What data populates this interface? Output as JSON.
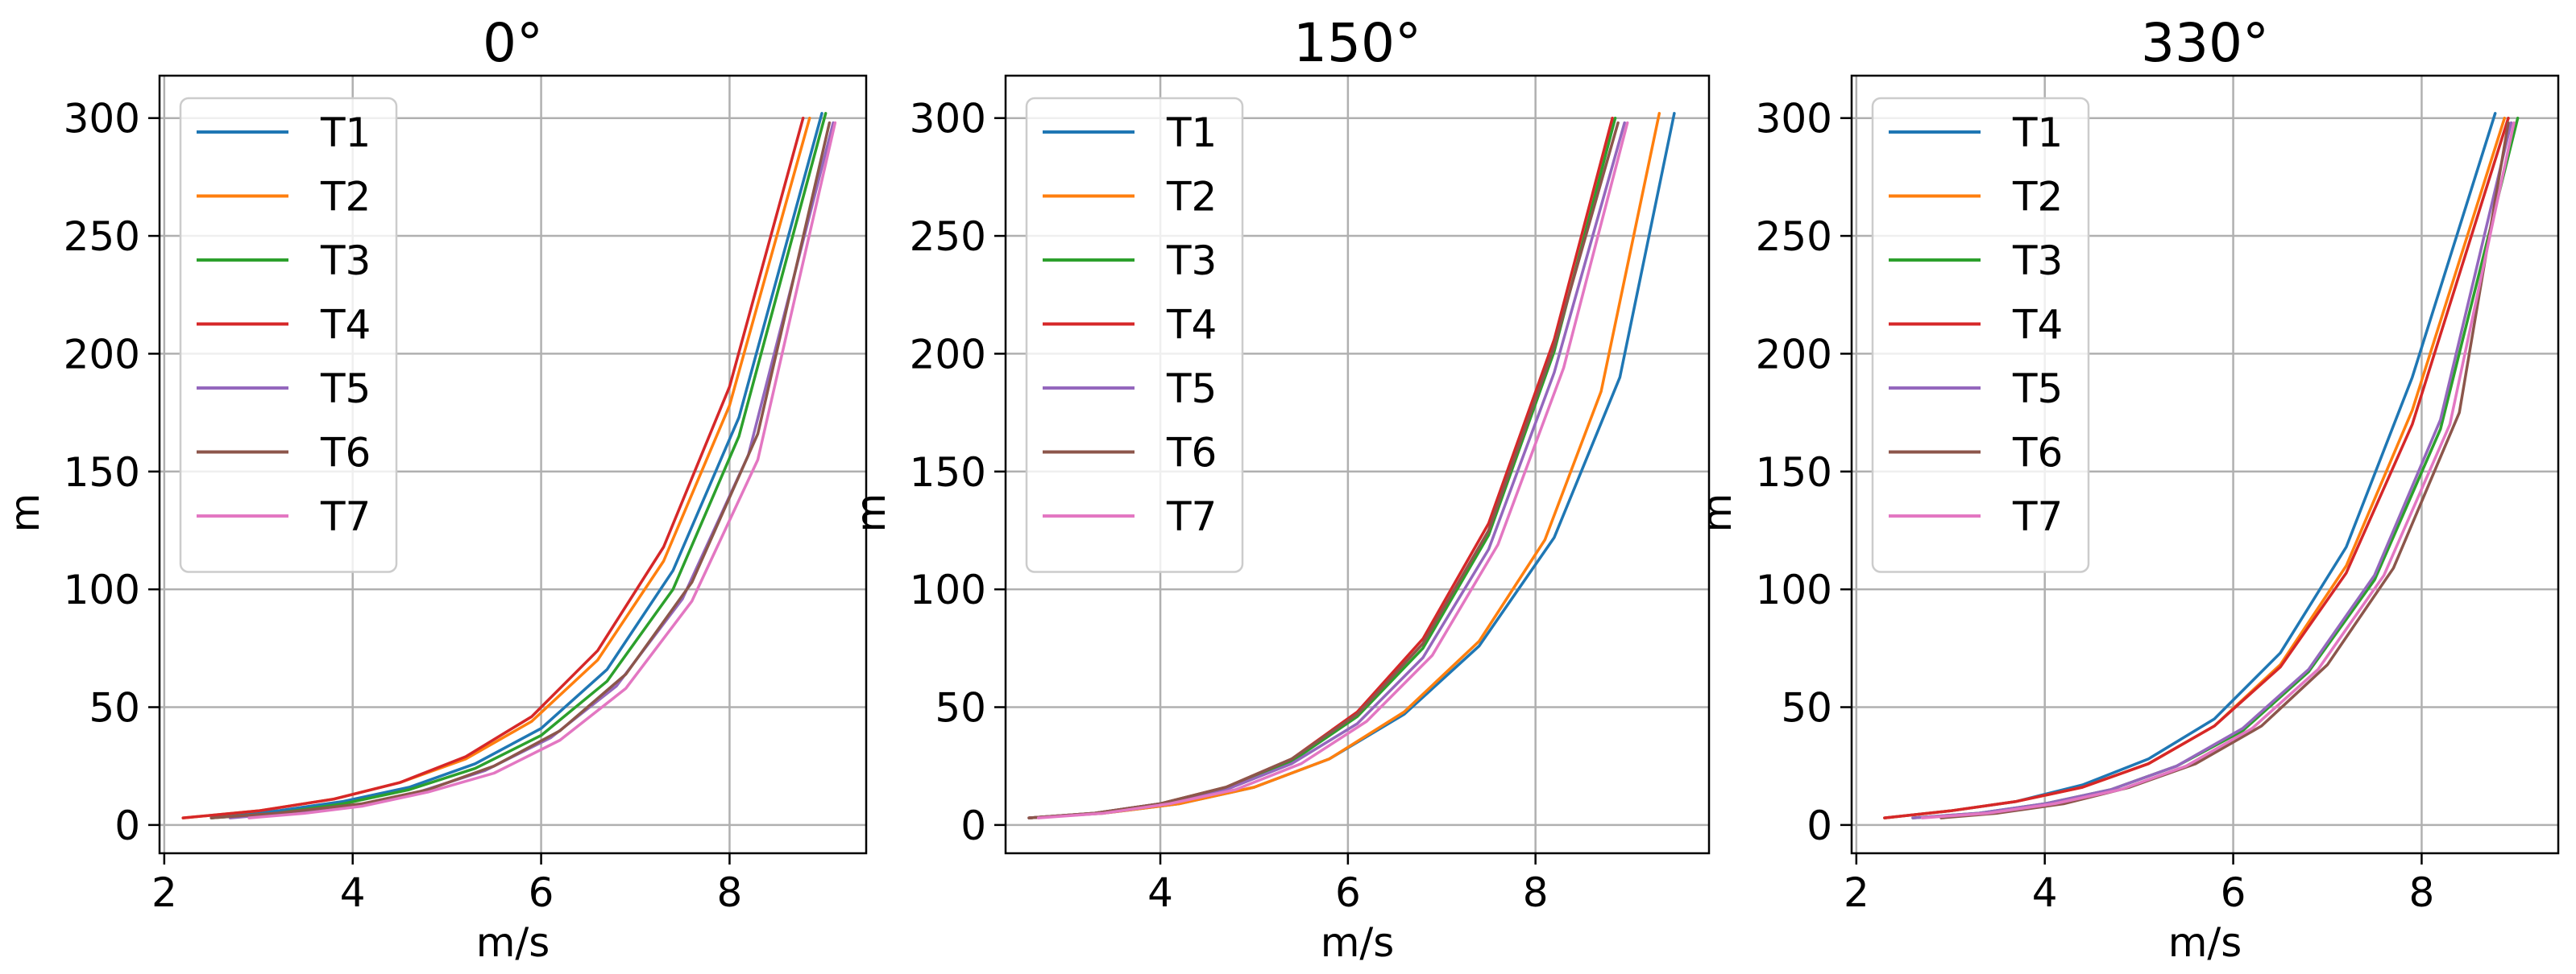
{
  "chart_data": [
    {
      "type": "line",
      "title": "0$^\\circ$",
      "title_display": "0°",
      "xlabel": "m/s",
      "ylabel": "m",
      "xlim": [
        1.95,
        9.45
      ],
      "ylim": [
        -12,
        318
      ],
      "xticks": [
        2,
        4,
        6,
        8
      ],
      "yticks": [
        0,
        50,
        100,
        150,
        200,
        250,
        300
      ],
      "grid": true,
      "legend": "top-left",
      "series": [
        {
          "name": "T1",
          "color": "#1f77b4",
          "ws": [
            2.5,
            3.2,
            3.9,
            4.6,
            5.3,
            6.0,
            6.7,
            7.4,
            8.1,
            8.98
          ],
          "h": [
            3,
            6,
            10,
            16,
            26,
            41,
            66,
            108,
            173,
            302
          ]
        },
        {
          "name": "T2",
          "color": "#ff7f0e",
          "ws": [
            2.2,
            3.0,
            3.8,
            4.5,
            5.2,
            5.9,
            6.6,
            7.3,
            8.0,
            8.85
          ],
          "h": [
            3,
            6,
            11,
            18,
            28,
            44,
            70,
            112,
            178,
            300
          ]
        },
        {
          "name": "T3",
          "color": "#2ca02c",
          "ws": [
            2.5,
            3.2,
            3.9,
            4.6,
            5.3,
            6.0,
            6.7,
            7.4,
            8.1,
            9.02
          ],
          "h": [
            3,
            5,
            9,
            15,
            24,
            38,
            61,
            100,
            165,
            302
          ]
        },
        {
          "name": "T4",
          "color": "#d62728",
          "ws": [
            2.2,
            3.0,
            3.8,
            4.5,
            5.2,
            5.9,
            6.6,
            7.3,
            8.0,
            8.78
          ],
          "h": [
            3,
            6,
            11,
            18,
            29,
            46,
            74,
            118,
            186,
            300
          ]
        },
        {
          "name": "T5",
          "color": "#9467bd",
          "ws": [
            2.7,
            3.3,
            4.0,
            4.7,
            5.4,
            6.1,
            6.8,
            7.5,
            8.2,
            9.1
          ],
          "h": [
            3,
            5,
            8,
            14,
            23,
            37,
            59,
            96,
            157,
            298
          ]
        },
        {
          "name": "T6",
          "color": "#8c564b",
          "ws": [
            2.5,
            3.2,
            4.1,
            4.8,
            5.5,
            6.2,
            6.9,
            7.6,
            8.3,
            9.06
          ],
          "h": [
            3,
            5,
            9,
            15,
            25,
            40,
            64,
            103,
            166,
            298
          ]
        },
        {
          "name": "T7",
          "color": "#e377c2",
          "ws": [
            2.9,
            3.5,
            4.1,
            4.8,
            5.5,
            6.2,
            6.9,
            7.6,
            8.3,
            9.12
          ],
          "h": [
            3,
            5,
            8,
            14,
            22,
            36,
            58,
            95,
            155,
            298
          ]
        }
      ]
    },
    {
      "type": "line",
      "title": "150$^\\circ$",
      "title_display": "150°",
      "xlabel": "m/s",
      "ylabel": "m",
      "xlim": [
        2.35,
        9.85
      ],
      "ylim": [
        -12,
        318
      ],
      "xticks": [
        4,
        6,
        8
      ],
      "yticks": [
        0,
        50,
        100,
        150,
        200,
        250,
        300
      ],
      "grid": true,
      "legend": "top-left",
      "series": [
        {
          "name": "T1",
          "color": "#1f77b4",
          "ws": [
            2.6,
            3.4,
            4.2,
            5.0,
            5.8,
            6.6,
            7.4,
            8.2,
            8.9,
            9.48
          ],
          "h": [
            3,
            5,
            9,
            16,
            28,
            47,
            76,
            122,
            190,
            302
          ]
        },
        {
          "name": "T2",
          "color": "#ff7f0e",
          "ws": [
            2.6,
            3.4,
            4.2,
            5.0,
            5.8,
            6.6,
            7.4,
            8.1,
            8.7,
            9.32
          ],
          "h": [
            3,
            5,
            9,
            16,
            28,
            48,
            78,
            121,
            184,
            302
          ]
        },
        {
          "name": "T3",
          "color": "#2ca02c",
          "ws": [
            2.6,
            3.3,
            4.0,
            4.7,
            5.4,
            6.1,
            6.8,
            7.5,
            8.2,
            8.85
          ],
          "h": [
            3,
            5,
            9,
            16,
            27,
            46,
            75,
            123,
            201,
            300
          ]
        },
        {
          "name": "T4",
          "color": "#d62728",
          "ws": [
            2.6,
            3.3,
            4.0,
            4.7,
            5.4,
            6.1,
            6.8,
            7.5,
            8.2,
            8.82
          ],
          "h": [
            3,
            5,
            9,
            16,
            28,
            48,
            79,
            128,
            206,
            300
          ]
        },
        {
          "name": "T5",
          "color": "#9467bd",
          "ws": [
            2.6,
            3.3,
            4.0,
            4.7,
            5.4,
            6.1,
            6.8,
            7.5,
            8.2,
            8.95
          ],
          "h": [
            3,
            5,
            9,
            15,
            26,
            43,
            71,
            117,
            192,
            298
          ]
        },
        {
          "name": "T6",
          "color": "#8c564b",
          "ws": [
            2.6,
            3.3,
            4.0,
            4.7,
            5.4,
            6.1,
            6.8,
            7.5,
            8.2,
            8.88
          ],
          "h": [
            3,
            5,
            9,
            16,
            28,
            47,
            77,
            125,
            203,
            298
          ]
        },
        {
          "name": "T7",
          "color": "#e377c2",
          "ws": [
            2.7,
            3.4,
            4.1,
            4.8,
            5.5,
            6.2,
            6.9,
            7.6,
            8.3,
            8.98
          ],
          "h": [
            3,
            5,
            9,
            15,
            26,
            44,
            72,
            119,
            194,
            298
          ]
        }
      ]
    },
    {
      "type": "line",
      "title": "330$^\\circ$",
      "title_display": "330°",
      "xlabel": "m/s",
      "ylabel": "m",
      "xlim": [
        1.95,
        9.45
      ],
      "ylim": [
        -12,
        318
      ],
      "xticks": [
        2,
        4,
        6,
        8
      ],
      "yticks": [
        0,
        50,
        100,
        150,
        200,
        250,
        300
      ],
      "grid": true,
      "legend": "top-left",
      "series": [
        {
          "name": "T1",
          "color": "#1f77b4",
          "ws": [
            2.3,
            3.0,
            3.7,
            4.4,
            5.1,
            5.8,
            6.5,
            7.2,
            7.9,
            8.78
          ],
          "h": [
            3,
            6,
            10,
            17,
            28,
            45,
            73,
            118,
            190,
            302
          ]
        },
        {
          "name": "T2",
          "color": "#ff7f0e",
          "ws": [
            2.3,
            3.0,
            3.7,
            4.4,
            5.1,
            5.8,
            6.5,
            7.2,
            7.9,
            8.88
          ],
          "h": [
            3,
            6,
            10,
            16,
            26,
            42,
            68,
            110,
            176,
            300
          ]
        },
        {
          "name": "T3",
          "color": "#2ca02c",
          "ws": [
            2.6,
            3.3,
            4.0,
            4.7,
            5.4,
            6.1,
            6.8,
            7.5,
            8.2,
            9.02
          ],
          "h": [
            3,
            5,
            9,
            15,
            25,
            40,
            65,
            104,
            168,
            300
          ]
        },
        {
          "name": "T4",
          "color": "#d62728",
          "ws": [
            2.3,
            3.0,
            3.7,
            4.4,
            5.1,
            5.8,
            6.5,
            7.2,
            7.9,
            8.92
          ],
          "h": [
            3,
            6,
            10,
            16,
            26,
            42,
            67,
            107,
            170,
            300
          ]
        },
        {
          "name": "T5",
          "color": "#9467bd",
          "ws": [
            2.6,
            3.3,
            4.0,
            4.7,
            5.4,
            6.1,
            6.8,
            7.5,
            8.2,
            8.95
          ],
          "h": [
            3,
            5,
            9,
            15,
            25,
            41,
            66,
            106,
            172,
            298
          ]
        },
        {
          "name": "T6",
          "color": "#8c564b",
          "ws": [
            2.9,
            3.5,
            4.2,
            4.9,
            5.6,
            6.3,
            7.0,
            7.7,
            8.4,
            8.92
          ],
          "h": [
            3,
            5,
            9,
            16,
            26,
            42,
            68,
            109,
            175,
            298
          ]
        },
        {
          "name": "T7",
          "color": "#e377c2",
          "ws": [
            2.7,
            3.4,
            4.1,
            4.8,
            5.5,
            6.2,
            6.9,
            7.6,
            8.3,
            8.98
          ],
          "h": [
            3,
            5,
            9,
            15,
            25,
            41,
            66,
            106,
            170,
            298
          ]
        }
      ]
    }
  ]
}
